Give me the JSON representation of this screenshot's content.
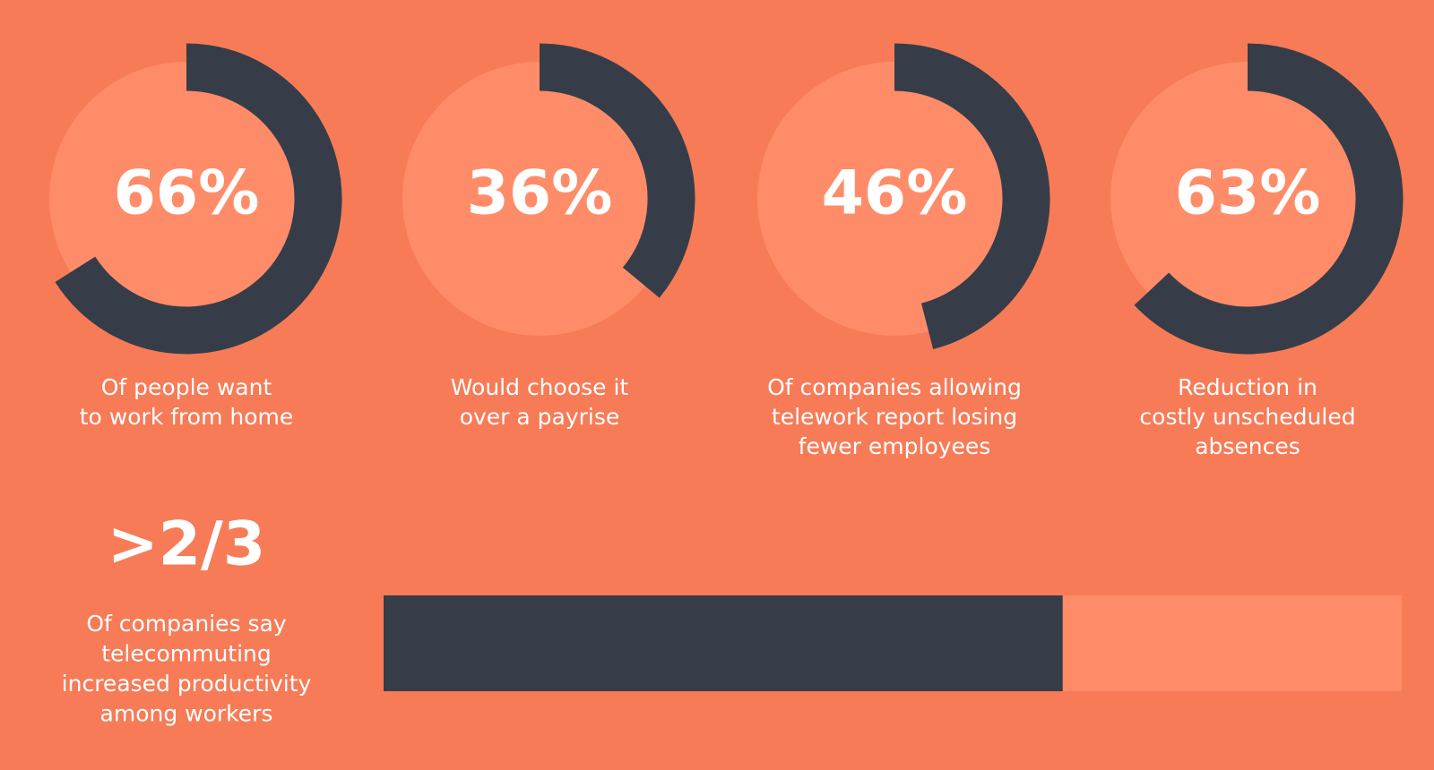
{
  "chart_data": [
    {
      "type": "gauge",
      "value": 66,
      "value_label": "66%",
      "ylim": [
        0,
        100
      ],
      "lines": [
        "Of people want",
        "to work from home"
      ],
      "color": "#363d48",
      "track_color": "#ff8c69"
    },
    {
      "type": "gauge",
      "value": 36,
      "value_label": "36%",
      "ylim": [
        0,
        100
      ],
      "lines": [
        "Would choose it",
        "over a payrise"
      ],
      "color": "#363d48",
      "track_color": "#ff8c69"
    },
    {
      "type": "gauge",
      "value": 46,
      "value_label": "46%",
      "ylim": [
        0,
        100
      ],
      "lines": [
        "Of companies allowing",
        "telework report losing",
        "fewer employees"
      ],
      "color": "#363d48",
      "track_color": "#ff8c69"
    },
    {
      "type": "gauge",
      "value": 63,
      "value_label": "63%",
      "ylim": [
        0,
        100
      ],
      "lines": [
        "Reduction in",
        "costly unscheduled",
        "absences"
      ],
      "color": "#363d48",
      "track_color": "#ff8c69"
    },
    {
      "type": "bar",
      "value": 0.667,
      "value_label": ">2/3",
      "xlim": [
        0,
        1
      ],
      "lines": [
        "Of companies say",
        "telecommuting",
        "increased productivity",
        "among workers"
      ],
      "color": "#363d48",
      "track_color": "#ff8c69"
    }
  ]
}
